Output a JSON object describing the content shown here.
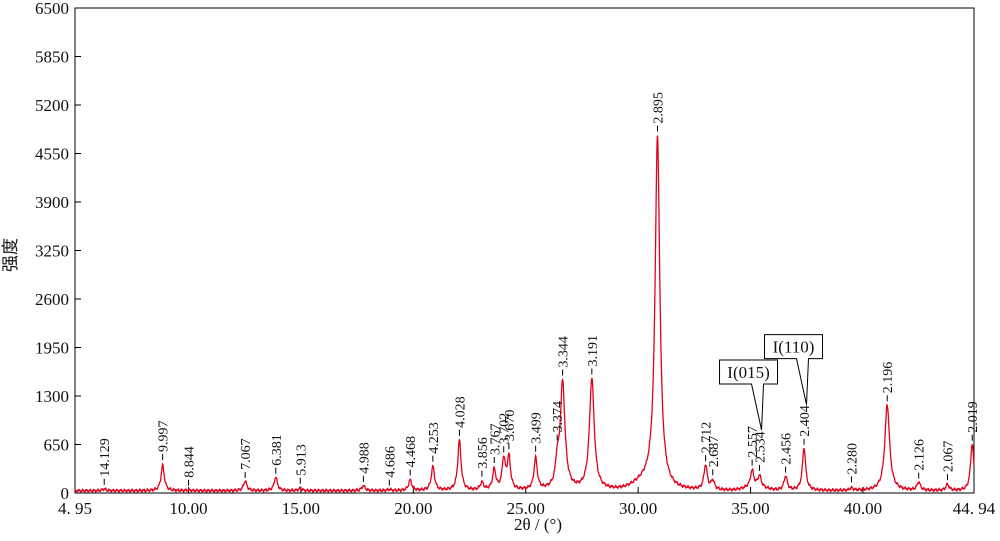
{
  "chart_data": {
    "type": "line",
    "title": "",
    "xlabel": "2θ / (°)",
    "ylabel": "强度",
    "xlim": [
      4.95,
      44.94
    ],
    "ylim": [
      0,
      6500
    ],
    "x_ticks": [
      {
        "value": 4.95,
        "label": "4. 95"
      },
      {
        "value": 10,
        "label": "10.00"
      },
      {
        "value": 15,
        "label": "15.00"
      },
      {
        "value": 20,
        "label": "20.00"
      },
      {
        "value": 25,
        "label": "25.00"
      },
      {
        "value": 30,
        "label": "30.00"
      },
      {
        "value": 35,
        "label": "35.00"
      },
      {
        "value": 40,
        "label": "40.00"
      },
      {
        "value": 44.94,
        "label": "44. 94"
      }
    ],
    "y_ticks": [
      0,
      650,
      1300,
      1950,
      2600,
      3250,
      3900,
      4550,
      5200,
      5850,
      6500
    ],
    "line_color": "#e3001b",
    "baseline": 30,
    "peaks": [
      {
        "x": 6.25,
        "y": 55,
        "label": "14.129"
      },
      {
        "x": 8.85,
        "y": 370,
        "label": "9.997"
      },
      {
        "x": 10.0,
        "y": 40,
        "label": "8.844"
      },
      {
        "x": 12.52,
        "y": 160,
        "label": "7.067"
      },
      {
        "x": 13.88,
        "y": 210,
        "label": "6.381"
      },
      {
        "x": 14.97,
        "y": 60,
        "label": "5.913"
      },
      {
        "x": 17.78,
        "y": 95,
        "label": "4.988"
      },
      {
        "x": 18.93,
        "y": 45,
        "label": "4.686"
      },
      {
        "x": 19.86,
        "y": 170,
        "label": "4.468"
      },
      {
        "x": 20.87,
        "y": 350,
        "label": "4.253"
      },
      {
        "x": 22.05,
        "y": 700,
        "label": "4.028"
      },
      {
        "x": 23.05,
        "y": 130,
        "label": "3.856"
      },
      {
        "x": 23.6,
        "y": 300,
        "label": "3.767"
      },
      {
        "x": 24.02,
        "y": 430,
        "label": "3.702"
      },
      {
        "x": 24.25,
        "y": 460,
        "label": "3.670"
      },
      {
        "x": 25.44,
        "y": 450,
        "label": "3.499"
      },
      {
        "x": 26.4,
        "y": 320,
        "label": "3.374"
      },
      {
        "x": 26.64,
        "y": 1460,
        "label": "3.344"
      },
      {
        "x": 27.94,
        "y": 1520,
        "label": "3.191"
      },
      {
        "x": 30.86,
        "y": 4720,
        "label": "2.895"
      },
      {
        "x": 33.0,
        "y": 360,
        "label": "2.712"
      },
      {
        "x": 33.32,
        "y": 150,
        "label": "2.687"
      },
      {
        "x": 35.07,
        "y": 250,
        "label": "2.557"
      },
      {
        "x": 35.4,
        "y": 180,
        "label": "2.534"
      },
      {
        "x": 36.56,
        "y": 220,
        "label": "2.456"
      },
      {
        "x": 37.38,
        "y": 600,
        "label": "2.404"
      },
      {
        "x": 39.49,
        "y": 60,
        "label": "2.280"
      },
      {
        "x": 41.08,
        "y": 1180,
        "label": "2.196"
      },
      {
        "x": 42.48,
        "y": 140,
        "label": "2.126"
      },
      {
        "x": 43.76,
        "y": 110,
        "label": "2.067"
      },
      {
        "x": 44.86,
        "y": 660,
        "label": "2.019"
      }
    ],
    "annotations": [
      {
        "text": "I(015)",
        "x": 35.4,
        "y": 1380
      },
      {
        "text": "I(110)",
        "x": 37.4,
        "y": 1720
      }
    ]
  }
}
